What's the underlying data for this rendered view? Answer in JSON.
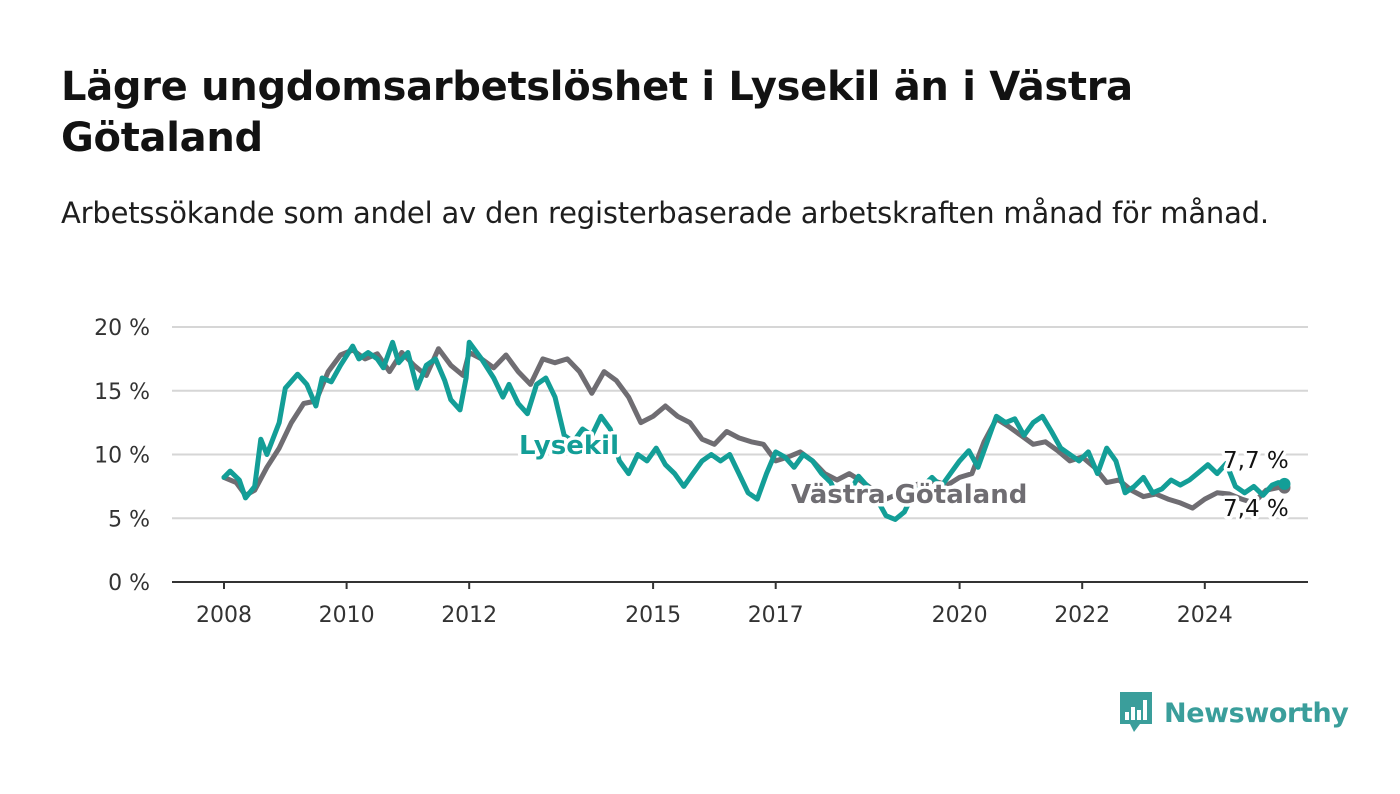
{
  "title": "Lägre ungdomsarbetslöshet i Lysekil än i Västra Götaland",
  "subtitle": "Arbetssökande som andel av den registerbaserade arbetskraften månad för månad.",
  "brand": {
    "name": "Newsworthy",
    "color": "#3a9e9b",
    "icon": "bar-chart-icon"
  },
  "chart_data": {
    "type": "line",
    "title": "Lägre ungdomsarbetslöshet i Lysekil än i Västra Götaland",
    "subtitle": "Arbetssökande som andel av den registerbaserade arbetskraften månad för månad.",
    "xlabel": "",
    "ylabel": "",
    "ylim": [
      0,
      20
    ],
    "xlim": [
      2008.0,
      2025.4
    ],
    "grid": true,
    "legend": "inline labels",
    "y_ticks": [
      {
        "value": 0,
        "label": "0 %"
      },
      {
        "value": 5,
        "label": "5 %"
      },
      {
        "value": 10,
        "label": "10 %"
      },
      {
        "value": 15,
        "label": "15 %"
      },
      {
        "value": 20,
        "label": "20 %"
      }
    ],
    "x_ticks": [
      {
        "value": 2008,
        "label": "2008"
      },
      {
        "value": 2010,
        "label": "2010"
      },
      {
        "value": 2012,
        "label": "2012"
      },
      {
        "value": 2015,
        "label": "2015"
      },
      {
        "value": 2017,
        "label": "2017"
      },
      {
        "value": 2020,
        "label": "2020"
      },
      {
        "value": 2022,
        "label": "2022"
      },
      {
        "value": 2024,
        "label": "2024"
      }
    ],
    "series": [
      {
        "name": "Västra Götaland",
        "color": "#6f6d72",
        "end_label": "7,4 %",
        "points": [
          [
            2008.0,
            8.2
          ],
          [
            2008.2,
            7.8
          ],
          [
            2008.35,
            6.8
          ],
          [
            2008.5,
            7.2
          ],
          [
            2008.7,
            9.0
          ],
          [
            2008.9,
            10.5
          ],
          [
            2009.1,
            12.5
          ],
          [
            2009.3,
            14.0
          ],
          [
            2009.5,
            14.2
          ],
          [
            2009.7,
            16.5
          ],
          [
            2009.9,
            17.8
          ],
          [
            2010.1,
            18.2
          ],
          [
            2010.3,
            17.5
          ],
          [
            2010.5,
            17.9
          ],
          [
            2010.7,
            16.5
          ],
          [
            2010.9,
            18.0
          ],
          [
            2011.1,
            17.0
          ],
          [
            2011.3,
            16.2
          ],
          [
            2011.5,
            18.3
          ],
          [
            2011.7,
            17.0
          ],
          [
            2011.9,
            16.2
          ],
          [
            2012.0,
            18.0
          ],
          [
            2012.2,
            17.5
          ],
          [
            2012.4,
            16.8
          ],
          [
            2012.6,
            17.8
          ],
          [
            2012.8,
            16.5
          ],
          [
            2013.0,
            15.5
          ],
          [
            2013.2,
            17.5
          ],
          [
            2013.4,
            17.2
          ],
          [
            2013.6,
            17.5
          ],
          [
            2013.8,
            16.5
          ],
          [
            2014.0,
            14.8
          ],
          [
            2014.2,
            16.5
          ],
          [
            2014.4,
            15.8
          ],
          [
            2014.6,
            14.5
          ],
          [
            2014.8,
            12.5
          ],
          [
            2015.0,
            13.0
          ],
          [
            2015.2,
            13.8
          ],
          [
            2015.4,
            13.0
          ],
          [
            2015.6,
            12.5
          ],
          [
            2015.8,
            11.2
          ],
          [
            2016.0,
            10.8
          ],
          [
            2016.2,
            11.8
          ],
          [
            2016.4,
            11.3
          ],
          [
            2016.6,
            11.0
          ],
          [
            2016.8,
            10.8
          ],
          [
            2017.0,
            9.5
          ],
          [
            2017.2,
            9.8
          ],
          [
            2017.4,
            10.2
          ],
          [
            2017.6,
            9.5
          ],
          [
            2017.8,
            8.5
          ],
          [
            2018.0,
            8.0
          ],
          [
            2018.2,
            8.5
          ],
          [
            2018.4,
            7.9
          ],
          [
            2018.6,
            7.2
          ],
          [
            2018.8,
            6.5
          ],
          [
            2019.0,
            6.9
          ],
          [
            2019.2,
            7.5
          ],
          [
            2019.4,
            7.8
          ],
          [
            2019.6,
            7.9
          ],
          [
            2019.8,
            7.6
          ],
          [
            2020.0,
            8.2
          ],
          [
            2020.2,
            8.5
          ],
          [
            2020.4,
            11.0
          ],
          [
            2020.6,
            12.8
          ],
          [
            2020.8,
            12.2
          ],
          [
            2021.0,
            11.5
          ],
          [
            2021.2,
            10.8
          ],
          [
            2021.4,
            11.0
          ],
          [
            2021.6,
            10.3
          ],
          [
            2021.8,
            9.5
          ],
          [
            2022.0,
            9.8
          ],
          [
            2022.2,
            9.0
          ],
          [
            2022.4,
            7.8
          ],
          [
            2022.6,
            8.0
          ],
          [
            2022.8,
            7.2
          ],
          [
            2023.0,
            6.7
          ],
          [
            2023.2,
            6.9
          ],
          [
            2023.4,
            6.5
          ],
          [
            2023.6,
            6.2
          ],
          [
            2023.8,
            5.8
          ],
          [
            2024.0,
            6.5
          ],
          [
            2024.2,
            7.0
          ],
          [
            2024.4,
            6.9
          ],
          [
            2024.6,
            6.5
          ],
          [
            2024.8,
            6.2
          ],
          [
            2025.0,
            7.2
          ],
          [
            2025.2,
            7.4
          ],
          [
            2025.3,
            7.4
          ]
        ]
      },
      {
        "name": "Lysekil",
        "color": "#139e97",
        "end_label": "7,7 %",
        "points": [
          [
            2008.0,
            8.2
          ],
          [
            2008.1,
            8.7
          ],
          [
            2008.25,
            8.0
          ],
          [
            2008.35,
            6.6
          ],
          [
            2008.5,
            7.5
          ],
          [
            2008.6,
            11.2
          ],
          [
            2008.7,
            10.0
          ],
          [
            2008.9,
            12.5
          ],
          [
            2009.0,
            15.2
          ],
          [
            2009.2,
            16.3
          ],
          [
            2009.35,
            15.5
          ],
          [
            2009.5,
            13.8
          ],
          [
            2009.6,
            16.0
          ],
          [
            2009.75,
            15.7
          ],
          [
            2009.9,
            17.0
          ],
          [
            2010.1,
            18.5
          ],
          [
            2010.2,
            17.5
          ],
          [
            2010.35,
            18.0
          ],
          [
            2010.5,
            17.5
          ],
          [
            2010.6,
            16.8
          ],
          [
            2010.75,
            18.8
          ],
          [
            2010.85,
            17.2
          ],
          [
            2011.0,
            18.0
          ],
          [
            2011.15,
            15.2
          ],
          [
            2011.3,
            17.0
          ],
          [
            2011.45,
            17.5
          ],
          [
            2011.6,
            15.8
          ],
          [
            2011.7,
            14.3
          ],
          [
            2011.85,
            13.5
          ],
          [
            2011.95,
            16.0
          ],
          [
            2012.0,
            18.8
          ],
          [
            2012.2,
            17.5
          ],
          [
            2012.4,
            16.0
          ],
          [
            2012.55,
            14.5
          ],
          [
            2012.65,
            15.5
          ],
          [
            2012.8,
            14.0
          ],
          [
            2012.95,
            13.2
          ],
          [
            2013.1,
            15.5
          ],
          [
            2013.25,
            16.0
          ],
          [
            2013.4,
            14.5
          ],
          [
            2013.55,
            11.5
          ],
          [
            2013.7,
            11.0
          ],
          [
            2013.85,
            12.0
          ],
          [
            2014.0,
            11.5
          ],
          [
            2014.15,
            13.0
          ],
          [
            2014.3,
            12.0
          ],
          [
            2014.45,
            9.5
          ],
          [
            2014.6,
            8.5
          ],
          [
            2014.75,
            10.0
          ],
          [
            2014.9,
            9.5
          ],
          [
            2015.05,
            10.5
          ],
          [
            2015.2,
            9.2
          ],
          [
            2015.35,
            8.5
          ],
          [
            2015.5,
            7.5
          ],
          [
            2015.65,
            8.5
          ],
          [
            2015.8,
            9.5
          ],
          [
            2015.95,
            10.0
          ],
          [
            2016.1,
            9.5
          ],
          [
            2016.25,
            10.0
          ],
          [
            2016.4,
            8.5
          ],
          [
            2016.55,
            7.0
          ],
          [
            2016.7,
            6.5
          ],
          [
            2016.85,
            8.5
          ],
          [
            2017.0,
            10.2
          ],
          [
            2017.15,
            9.8
          ],
          [
            2017.3,
            9.0
          ],
          [
            2017.45,
            10.0
          ],
          [
            2017.6,
            9.5
          ],
          [
            2017.75,
            8.5
          ],
          [
            2017.9,
            7.8
          ],
          [
            2018.05,
            6.2
          ],
          [
            2018.2,
            7.0
          ],
          [
            2018.35,
            8.3
          ],
          [
            2018.5,
            7.5
          ],
          [
            2018.65,
            6.5
          ],
          [
            2018.8,
            5.2
          ],
          [
            2018.95,
            4.9
          ],
          [
            2019.1,
            5.5
          ],
          [
            2019.25,
            7.0
          ],
          [
            2019.4,
            7.5
          ],
          [
            2019.55,
            8.2
          ],
          [
            2019.7,
            7.5
          ],
          [
            2019.85,
            8.5
          ],
          [
            2020.0,
            9.5
          ],
          [
            2020.15,
            10.3
          ],
          [
            2020.3,
            9.0
          ],
          [
            2020.45,
            11.0
          ],
          [
            2020.6,
            13.0
          ],
          [
            2020.75,
            12.5
          ],
          [
            2020.9,
            12.8
          ],
          [
            2021.05,
            11.5
          ],
          [
            2021.2,
            12.5
          ],
          [
            2021.35,
            13.0
          ],
          [
            2021.5,
            11.8
          ],
          [
            2021.65,
            10.5
          ],
          [
            2021.8,
            10.0
          ],
          [
            2021.95,
            9.5
          ],
          [
            2022.1,
            10.2
          ],
          [
            2022.25,
            8.5
          ],
          [
            2022.4,
            10.5
          ],
          [
            2022.55,
            9.5
          ],
          [
            2022.7,
            7.0
          ],
          [
            2022.85,
            7.5
          ],
          [
            2023.0,
            8.2
          ],
          [
            2023.15,
            7.0
          ],
          [
            2023.3,
            7.3
          ],
          [
            2023.45,
            8.0
          ],
          [
            2023.6,
            7.6
          ],
          [
            2023.75,
            8.0
          ],
          [
            2023.9,
            8.6
          ],
          [
            2024.05,
            9.2
          ],
          [
            2024.2,
            8.5
          ],
          [
            2024.35,
            9.3
          ],
          [
            2024.5,
            7.5
          ],
          [
            2024.65,
            7.0
          ],
          [
            2024.8,
            7.5
          ],
          [
            2024.95,
            6.8
          ],
          [
            2025.1,
            7.6
          ],
          [
            2025.2,
            7.8
          ],
          [
            2025.3,
            7.7
          ]
        ]
      }
    ],
    "annotations": [
      {
        "text": "Lysekil",
        "series": "Lysekil"
      },
      {
        "text": "Västra Götaland",
        "series": "Västra Götaland"
      }
    ]
  }
}
